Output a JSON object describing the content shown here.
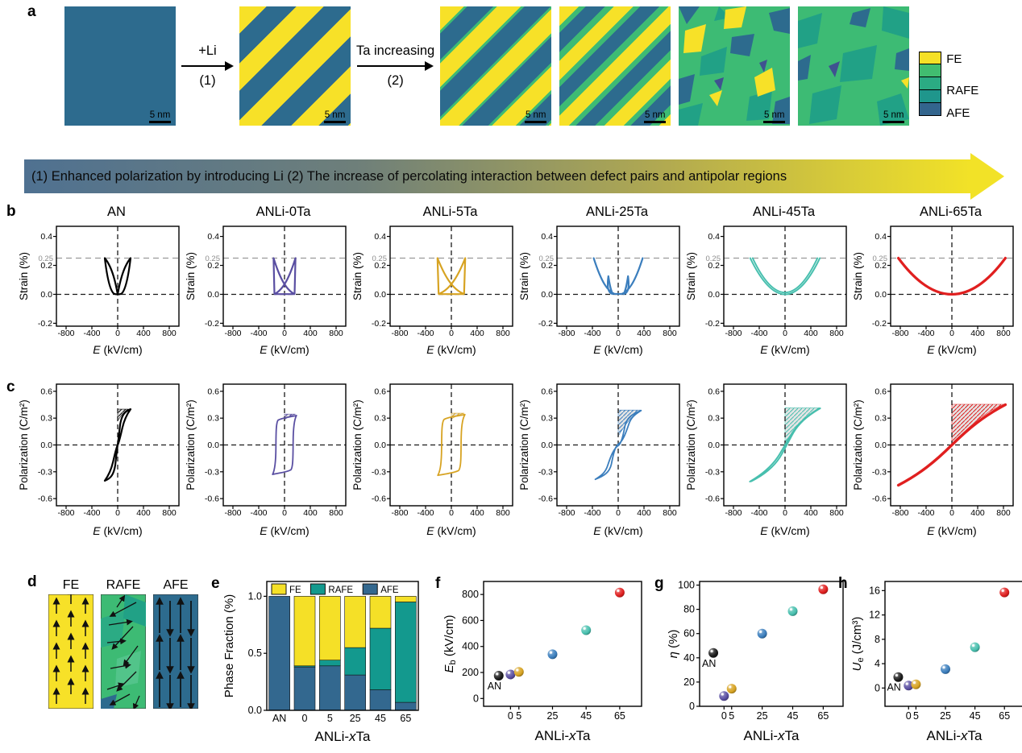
{
  "panels": {
    "a": "a",
    "b": "b",
    "c": "c",
    "d": "d",
    "e": "e",
    "f": "f",
    "g": "g",
    "h": "h"
  },
  "colors": {
    "fe": "#f7e128",
    "rafe": "#3dbb74",
    "rafe_mid": "#27aa83",
    "rafe_deep": "#1f958d",
    "afe": "#2d6b8e",
    "navy": "#3f5290",
    "banner_from": "#4f7191",
    "banner_to": "#f2e227"
  },
  "panel_a": {
    "arrow1_top": "+Li",
    "arrow1_bottom": "(1)",
    "arrow2_top": "Ta increasing",
    "arrow2_bottom": "(2)",
    "scalebar_label": "5 nm",
    "legend_items": [
      {
        "label": "FE"
      },
      {
        "label": "RAFE"
      },
      {
        "label": "AFE"
      }
    ],
    "legend_colors": [
      "#f5e027",
      "#41bd70",
      "#2bab83",
      "#1f968c",
      "#33658d"
    ]
  },
  "banner": {
    "text": "(1) Enhanced polarization by introducing Li  (2)  The increase of percolating interaction between defect pairs and antipolar regions"
  },
  "panel_d": {
    "items": [
      {
        "label": "FE"
      },
      {
        "label": "RAFE"
      },
      {
        "label": "AFE"
      }
    ]
  },
  "chart_data": {
    "strain_axes": {
      "xlim": [
        -950,
        950
      ],
      "ylim": [
        -0.22,
        0.47
      ],
      "xticks": [
        -800,
        -400,
        0,
        400,
        800
      ],
      "xtick_labels": [
        "-800",
        "-400",
        "0",
        "400",
        "800"
      ],
      "yticks": [
        0.4,
        0.2,
        0,
        -0.2
      ],
      "ytick_labels": [
        "0.4",
        "0.2",
        "0.0",
        "-0.2"
      ],
      "refline_y": 0.25,
      "refline_label": "0.25",
      "xlabel_italic": "E",
      "xlabel_rest": " (kV/cm)",
      "ylabel": "Strain (%)"
    },
    "strain_plots": [
      {
        "id": "strain-an",
        "title": "AN",
        "color": "#000000",
        "shape": "butterfly-narrow",
        "e_max": 200,
        "v_max": 0.25,
        "line_width": 2.2
      },
      {
        "id": "strain-0ta",
        "title": "ANLi-0Ta",
        "color": "#5a4fa2",
        "shape": "crossing-loop",
        "e_max": 170,
        "v_max": 0.25,
        "line_width": 2.2
      },
      {
        "id": "strain-5ta",
        "title": "ANLi-5Ta",
        "color": "#d7a322",
        "shape": "crossing-loop",
        "e_max": 215,
        "v_max": 0.25,
        "line_width": 2.2
      },
      {
        "id": "strain-25ta",
        "title": "ANLi-25Ta",
        "color": "#3b7ebd",
        "shape": "butterfly-wide",
        "e_max": 380,
        "v_max": 0.25,
        "line_width": 2.2
      },
      {
        "id": "strain-45ta",
        "title": "ANLi-45Ta",
        "color": "#47bfae",
        "shape": "parabola-double",
        "e_max": 540,
        "v_max": 0.25,
        "line_width": 2
      },
      {
        "id": "strain-65ta",
        "title": "ANLi-65Ta",
        "color": "#e01f1f",
        "shape": "parabola",
        "e_max": 830,
        "v_max": 0.25,
        "line_width": 3.2
      }
    ],
    "polar_axes": {
      "xlim": [
        -950,
        950
      ],
      "ylim": [
        -0.68,
        0.68
      ],
      "xticks": [
        -800,
        -400,
        0,
        400,
        800
      ],
      "xtick_labels": [
        "-800",
        "-400",
        "0",
        "400",
        "800"
      ],
      "yticks": [
        0.6,
        0.3,
        0,
        -0.3,
        -0.6
      ],
      "ytick_labels": [
        "0.6",
        "0.3",
        "0.0",
        "-0.3",
        "-0.6"
      ],
      "xlabel_italic": "E",
      "xlabel_rest": " (kV/cm)",
      "ylabel": "Polarization (C/m²)"
    },
    "polar_plots": [
      {
        "id": "polar-an",
        "color": "#000000",
        "shape": "double-hysteresis",
        "e_max": 200,
        "v_max": 0.4,
        "line_width": 2.2,
        "hatch": {
          "y_start": 0.27,
          "p_top": 0.4,
          "e_right": 165
        }
      },
      {
        "id": "polar-0ta",
        "color": "#5a4fa2",
        "shape": "square-loop",
        "e_max": 185,
        "v_max": 0.34,
        "line_width": 1.8,
        "hatch": {
          "y_start": 0.285,
          "p_top": 0.345,
          "e_right": 170
        }
      },
      {
        "id": "polar-5ta",
        "color": "#d7a322",
        "shape": "square-loop",
        "e_max": 210,
        "v_max": 0.35,
        "line_width": 1.8,
        "hatch": {
          "y_start": 0.29,
          "p_top": 0.355,
          "e_right": 200
        }
      },
      {
        "id": "polar-25ta",
        "color": "#3b7ebd",
        "shape": "pinched-loop",
        "e_max": 355,
        "v_max": 0.385,
        "line_width": 1.8,
        "hatch": {
          "y_start": 0.1,
          "p_top": 0.39,
          "e_right": 350
        }
      },
      {
        "id": "polar-45ta",
        "color": "#47bfae",
        "shape": "slim-s",
        "e_max": 545,
        "v_max": 0.41,
        "line_width": 2,
        "hatch": {
          "y_start": 0.03,
          "p_top": 0.415,
          "e_right": 540
        }
      },
      {
        "id": "polar-65ta",
        "color": "#e01f1f",
        "shape": "near-linear",
        "e_max": 830,
        "v_max": 0.45,
        "line_width": 3.4,
        "hatch": {
          "y_start": 0.0,
          "p_top": 0.455,
          "e_right": 820
        }
      }
    ],
    "phase_fraction": {
      "type": "bar",
      "categories": [
        "AN",
        "0",
        "5",
        "25",
        "45",
        "65"
      ],
      "series": [
        {
          "name": "AFE",
          "color": "#33688f",
          "values": [
            1.0,
            0.38,
            0.39,
            0.31,
            0.18,
            0.07
          ]
        },
        {
          "name": "RAFE",
          "color": "#13998e",
          "values": [
            0.0,
            0.01,
            0.05,
            0.24,
            0.54,
            0.88
          ]
        },
        {
          "name": "FE",
          "color": "#f5e027",
          "values": [
            0.0,
            0.61,
            0.56,
            0.45,
            0.28,
            0.05
          ]
        }
      ],
      "legend_order": [
        "FE",
        "RAFE",
        "AFE"
      ],
      "ylabel": "Phase Fraction (%)",
      "yticks": [
        0,
        0.5,
        1
      ],
      "ytick_labels": [
        "0.0",
        "0.5",
        "1.0"
      ],
      "ylim": [
        0,
        1.13
      ],
      "xlabel_pre": "ANLi-",
      "xlabel_italic": "x",
      "xlabel_post": "Ta"
    },
    "scatter_common": {
      "x_values": [
        -7,
        0,
        5,
        25,
        45,
        65
      ],
      "point_labels": [
        "AN",
        "0",
        "5",
        "25",
        "45",
        "65"
      ],
      "xticks": [
        0,
        5,
        25,
        45,
        65
      ],
      "xtick_labels": [
        "0",
        "5",
        "25",
        "45",
        "65"
      ],
      "xlim": [
        -16,
        78
      ],
      "point_colors": [
        "#1a1a1a",
        "#5a4fa2",
        "#d7a322",
        "#3b7ebd",
        "#47bfae",
        "#e01f1f"
      ],
      "annotation": "AN",
      "xlabel_pre": "ANLi-",
      "xlabel_italic": "x",
      "xlabel_post": "Ta"
    },
    "scatter_plots": [
      {
        "id": "eb",
        "type": "scatter",
        "ylabel_italic": "E",
        "ylabel_sub": "b",
        "ylabel_rest": " (kV/cm)",
        "values": [
          175,
          185,
          205,
          340,
          525,
          815
        ],
        "ylim": [
          -60,
          900
        ],
        "yticks": [
          0,
          200,
          400,
          600,
          800
        ],
        "ytick_labels": [
          "0",
          "200",
          "400",
          "600",
          "800"
        ]
      },
      {
        "id": "eta",
        "type": "scatter",
        "ylabel_italic": "η",
        "ylabel_sub": "",
        "ylabel_rest": " (%)",
        "values": [
          44,
          8.5,
          14.5,
          60,
          78.5,
          96.5
        ],
        "ylim": [
          0,
          103
        ],
        "yticks": [
          0,
          20,
          40,
          60,
          80,
          100
        ],
        "ytick_labels": [
          "0",
          "20",
          "40",
          "60",
          "80",
          "100"
        ]
      },
      {
        "id": "ue",
        "type": "scatter",
        "ylabel_italic": "U",
        "ylabel_sub": "e",
        "ylabel_rest": " (J/cm³)",
        "values": [
          1.8,
          0.4,
          0.6,
          3.1,
          6.7,
          15.7
        ],
        "ylim": [
          -3,
          17.5
        ],
        "yticks": [
          0,
          4,
          8,
          12,
          16
        ],
        "ytick_labels": [
          "0",
          "4",
          "8",
          "12",
          "16"
        ]
      }
    ]
  }
}
